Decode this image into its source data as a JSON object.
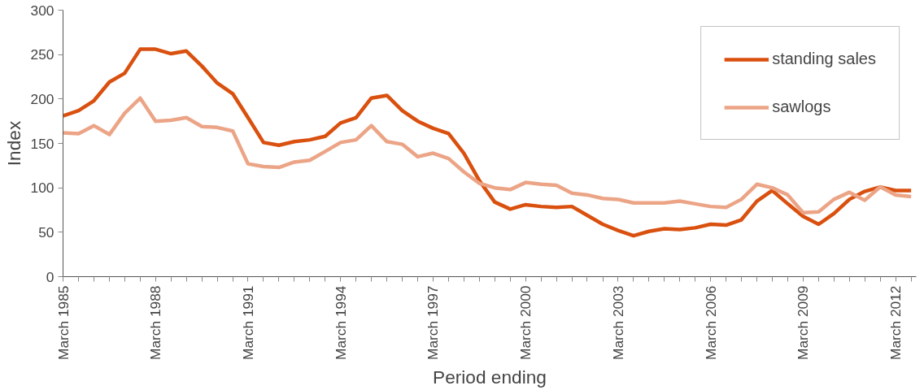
{
  "chart_data": {
    "type": "line",
    "xlabel": "Period ending",
    "ylabel": "Index",
    "x": [
      "1985-03",
      "1985-09",
      "1986-03",
      "1986-09",
      "1987-03",
      "1987-09",
      "1988-03",
      "1988-09",
      "1989-03",
      "1989-09",
      "1990-03",
      "1990-09",
      "1991-03",
      "1991-09",
      "1992-03",
      "1992-09",
      "1993-03",
      "1993-09",
      "1994-03",
      "1994-09",
      "1995-03",
      "1995-09",
      "1996-03",
      "1996-09",
      "1997-03",
      "1997-09",
      "1998-03",
      "1998-09",
      "1999-03",
      "1999-09",
      "2000-03",
      "2000-09",
      "2001-03",
      "2001-09",
      "2002-03",
      "2002-09",
      "2003-03",
      "2003-09",
      "2004-03",
      "2004-09",
      "2005-03",
      "2005-09",
      "2006-03",
      "2006-09",
      "2007-03",
      "2007-09",
      "2008-03",
      "2008-09",
      "2009-03",
      "2009-09",
      "2010-03",
      "2010-09",
      "2011-03",
      "2011-09",
      "2012-03",
      "2012-09"
    ],
    "series": [
      {
        "name": "standing sales",
        "color": "#d9500f",
        "values": [
          181,
          187,
          198,
          219,
          229,
          256,
          256,
          251,
          254,
          237,
          218,
          206,
          179,
          151,
          148,
          152,
          154,
          158,
          173,
          179,
          201,
          204,
          187,
          175,
          167,
          161,
          139,
          108,
          84,
          76,
          81,
          79,
          78,
          79,
          69,
          59,
          52,
          46,
          51,
          54,
          53,
          55,
          59,
          58,
          64,
          85,
          97,
          82,
          68,
          59,
          71,
          87,
          96,
          101,
          97,
          97
        ]
      },
      {
        "name": "sawlogs",
        "color": "#eca486",
        "values": [
          162,
          161,
          170,
          160,
          184,
          201,
          175,
          176,
          179,
          169,
          168,
          164,
          127,
          124,
          123,
          129,
          131,
          141,
          151,
          154,
          170,
          152,
          149,
          135,
          139,
          133,
          118,
          105,
          100,
          98,
          106,
          104,
          103,
          94,
          92,
          88,
          87,
          83,
          83,
          83,
          85,
          82,
          79,
          78,
          87,
          104,
          100,
          92,
          72,
          73,
          87,
          95,
          86,
          101,
          92,
          90
        ]
      }
    ],
    "xlim": [
      "1985-03",
      "2012-11"
    ],
    "xticks": [
      {
        "value": "1985-03",
        "label": "March 1985"
      },
      {
        "value": "1985-09",
        "label": null
      },
      {
        "value": "1986-03",
        "label": null
      },
      {
        "value": "1986-09",
        "label": null
      },
      {
        "value": "1987-03",
        "label": null
      },
      {
        "value": "1987-09",
        "label": null
      },
      {
        "value": "1988-03",
        "label": "March 1988"
      },
      {
        "value": "1988-09",
        "label": null
      },
      {
        "value": "1989-03",
        "label": null
      },
      {
        "value": "1989-09",
        "label": null
      },
      {
        "value": "1990-03",
        "label": null
      },
      {
        "value": "1990-09",
        "label": null
      },
      {
        "value": "1991-03",
        "label": "March 1991"
      },
      {
        "value": "1991-09",
        "label": null
      },
      {
        "value": "1992-03",
        "label": null
      },
      {
        "value": "1992-09",
        "label": null
      },
      {
        "value": "1993-03",
        "label": null
      },
      {
        "value": "1993-09",
        "label": null
      },
      {
        "value": "1994-03",
        "label": "March 1994"
      },
      {
        "value": "1994-09",
        "label": null
      },
      {
        "value": "1995-03",
        "label": null
      },
      {
        "value": "1995-09",
        "label": null
      },
      {
        "value": "1996-03",
        "label": null
      },
      {
        "value": "1996-09",
        "label": null
      },
      {
        "value": "1997-03",
        "label": "March 1997"
      },
      {
        "value": "1997-09",
        "label": null
      },
      {
        "value": "1998-03",
        "label": null
      },
      {
        "value": "1998-09",
        "label": null
      },
      {
        "value": "1999-03",
        "label": null
      },
      {
        "value": "1999-09",
        "label": null
      },
      {
        "value": "2000-03",
        "label": "March 2000"
      },
      {
        "value": "2000-09",
        "label": null
      },
      {
        "value": "2001-03",
        "label": null
      },
      {
        "value": "2001-09",
        "label": null
      },
      {
        "value": "2002-03",
        "label": null
      },
      {
        "value": "2002-09",
        "label": null
      },
      {
        "value": "2003-03",
        "label": "March 2003"
      },
      {
        "value": "2003-09",
        "label": null
      },
      {
        "value": "2004-03",
        "label": null
      },
      {
        "value": "2004-09",
        "label": null
      },
      {
        "value": "2005-03",
        "label": null
      },
      {
        "value": "2005-09",
        "label": null
      },
      {
        "value": "2006-03",
        "label": "March 2006"
      },
      {
        "value": "2006-09",
        "label": null
      },
      {
        "value": "2007-03",
        "label": null
      },
      {
        "value": "2007-09",
        "label": null
      },
      {
        "value": "2008-03",
        "label": null
      },
      {
        "value": "2008-09",
        "label": null
      },
      {
        "value": "2009-03",
        "label": "March 2009"
      },
      {
        "value": "2009-09",
        "label": null
      },
      {
        "value": "2010-03",
        "label": null
      },
      {
        "value": "2010-09",
        "label": null
      },
      {
        "value": "2011-03",
        "label": null
      },
      {
        "value": "2011-09",
        "label": null
      },
      {
        "value": "2012-03",
        "label": "March 2012"
      },
      {
        "value": "2012-09",
        "label": null
      }
    ],
    "ylim": [
      0,
      300
    ],
    "yticks": [
      0,
      50,
      100,
      150,
      200,
      250,
      300
    ],
    "grid": false,
    "legend": "top right",
    "line_style": "solid",
    "marker": "none"
  }
}
